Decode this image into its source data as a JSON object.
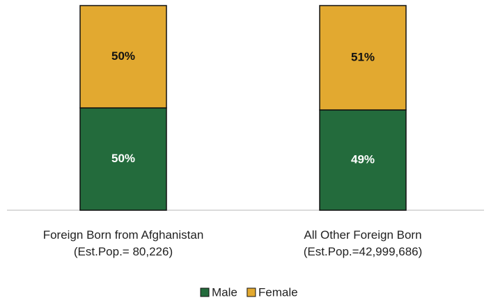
{
  "chart_data": {
    "type": "stacked_bar",
    "categories": [
      "Foreign Born from Afghanistan\n(Est.Pop.= 80,226)",
      "All Other Foreign Born\n(Est.Pop.=42,999,686)"
    ],
    "series": [
      {
        "name": "Male",
        "color": "#236b3c",
        "values": [
          50,
          49
        ],
        "value_labels": [
          "50%",
          "49%"
        ]
      },
      {
        "name": "Female",
        "color": "#e2a930",
        "values": [
          50,
          51
        ],
        "value_labels": [
          "50%",
          "51%"
        ]
      }
    ],
    "legend": "bottom"
  }
}
